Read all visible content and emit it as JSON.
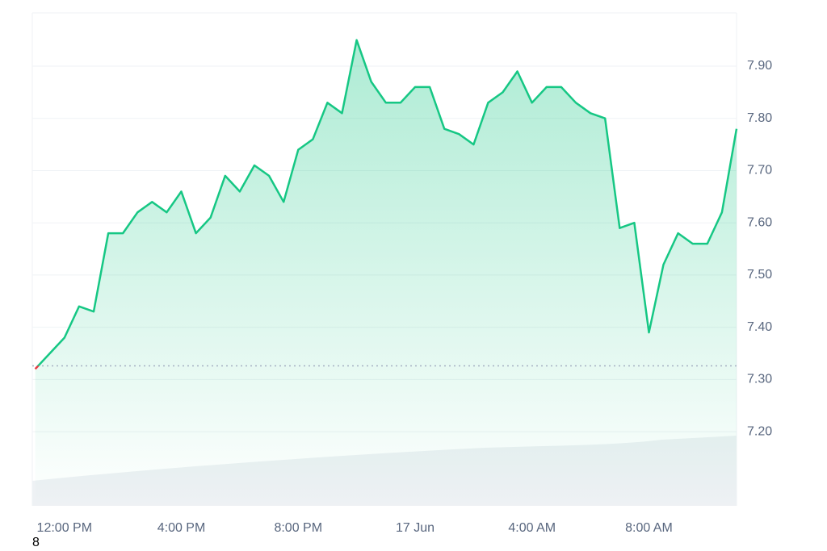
{
  "chart_data": {
    "type": "line",
    "x": [
      11,
      11.5,
      12,
      12.5,
      13,
      13.5,
      14,
      14.5,
      15,
      15.5,
      16,
      16.5,
      17,
      17.5,
      18,
      18.5,
      19,
      19.5,
      20,
      20.5,
      21,
      21.5,
      22,
      22.5,
      23,
      23.5,
      24,
      24.5,
      25,
      25.5,
      26,
      26.5,
      27,
      27.5,
      28,
      28.5,
      29,
      29.5,
      30,
      30.5,
      31,
      31.5,
      32,
      32.5,
      33,
      33.5,
      34,
      34.5,
      35
    ],
    "series": [
      {
        "color": "#16c784",
        "down_color": "#ea3943",
        "values": [
          7.32,
          7.35,
          7.38,
          7.44,
          7.43,
          7.58,
          7.58,
          7.62,
          7.64,
          7.62,
          7.66,
          7.58,
          7.61,
          7.69,
          7.66,
          7.71,
          7.69,
          7.64,
          7.74,
          7.76,
          7.83,
          7.81,
          7.95,
          7.87,
          7.83,
          7.83,
          7.86,
          7.86,
          7.78,
          7.77,
          7.75,
          7.83,
          7.85,
          7.89,
          7.83,
          7.86,
          7.86,
          7.83,
          7.81,
          7.8,
          7.59,
          7.6,
          7.39,
          7.52,
          7.58,
          7.56,
          7.56,
          7.62,
          7.78
        ]
      }
    ],
    "baseline": 7.326,
    "xlim": [
      10.9,
      35.0
    ],
    "xticks": [
      {
        "value": 12,
        "label": "12:00 PM"
      },
      {
        "value": 16,
        "label": "4:00 PM"
      },
      {
        "value": 20,
        "label": "8:00 PM"
      },
      {
        "value": 24,
        "label": "17 Jun"
      },
      {
        "value": 28,
        "label": "4:00 AM"
      },
      {
        "value": 32,
        "label": "8:00 AM"
      }
    ],
    "ylim": [
      7.058,
      8.002
    ],
    "yticks": [
      {
        "value": 7.2,
        "label": "7.20"
      },
      {
        "value": 7.3,
        "label": "7.30"
      },
      {
        "value": 7.4,
        "label": "7.40"
      },
      {
        "value": 7.5,
        "label": "7.50"
      },
      {
        "value": 7.6,
        "label": "7.60"
      },
      {
        "value": 7.7,
        "label": "7.70"
      },
      {
        "value": 7.8,
        "label": "7.80"
      },
      {
        "value": 7.9,
        "label": "7.90"
      }
    ],
    "grid": true,
    "footnote": "8"
  }
}
